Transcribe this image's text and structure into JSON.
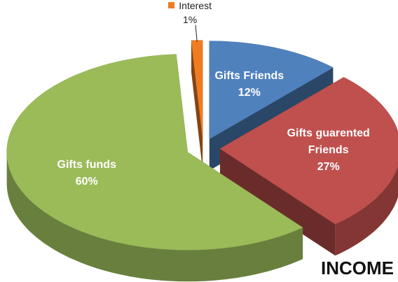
{
  "chart_data": {
    "type": "pie",
    "title": "INCOME",
    "categories": [
      "Gifts Friends",
      "Gifts guarented Friends",
      "Gifts funds",
      "Interest"
    ],
    "values": [
      12,
      27,
      60,
      1
    ],
    "value_labels": [
      "12%",
      "27%",
      "60%",
      "1%"
    ],
    "colors": [
      "#4f81bd",
      "#c0504d",
      "#9bbb59",
      "#f07c22"
    ]
  }
}
